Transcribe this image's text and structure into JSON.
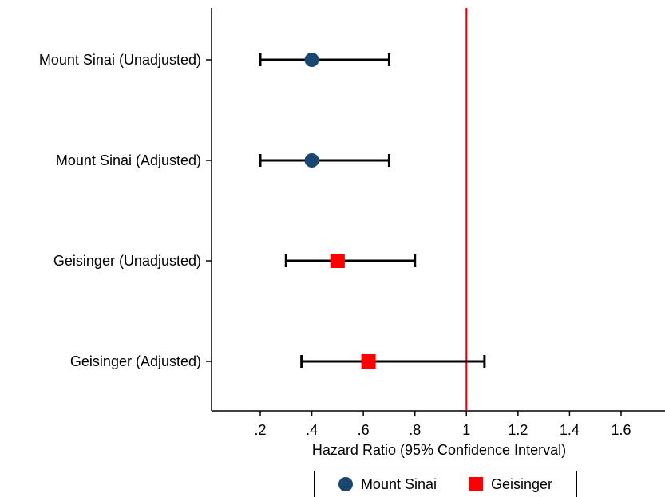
{
  "chart_data": {
    "type": "scatter",
    "subtype": "forest-plot",
    "xlabel": "Hazard Ratio (95% Confidence Interval)",
    "ylabel": "",
    "xlim": [
      0.0,
      1.76
    ],
    "x_ticks": [
      0.2,
      0.4,
      0.6,
      0.8,
      1.0,
      1.2,
      1.4,
      1.6
    ],
    "x_tick_labels": [
      ".2",
      ".4",
      ".6",
      ".8",
      "1",
      "1.2",
      "1.4",
      "1.6"
    ],
    "reference_line": {
      "x": 1.0,
      "color": "#e8000b"
    },
    "grid": false,
    "legend_position": "bottom",
    "rows": [
      {
        "label": "Mount Sinai (Unadjusted)",
        "series": "Mount Sinai",
        "hr": 0.4,
        "ci_low": 0.2,
        "ci_high": 0.7
      },
      {
        "label": "Mount Sinai (Adjusted)",
        "series": "Mount Sinai",
        "hr": 0.4,
        "ci_low": 0.2,
        "ci_high": 0.7
      },
      {
        "label": "Geisinger (Unadjusted)",
        "series": "Geisinger",
        "hr": 0.5,
        "ci_low": 0.3,
        "ci_high": 0.8
      },
      {
        "label": "Geisinger (Adjusted)",
        "series": "Geisinger",
        "hr": 0.62,
        "ci_low": 0.36,
        "ci_high": 1.07
      }
    ],
    "series": [
      {
        "name": "Mount Sinai",
        "marker": "circle",
        "color": "#1a476f"
      },
      {
        "name": "Geisinger",
        "marker": "square",
        "color": "#ff0000"
      }
    ]
  },
  "legend": {
    "items": [
      {
        "label": "Mount Sinai"
      },
      {
        "label": "Geisinger"
      }
    ]
  }
}
